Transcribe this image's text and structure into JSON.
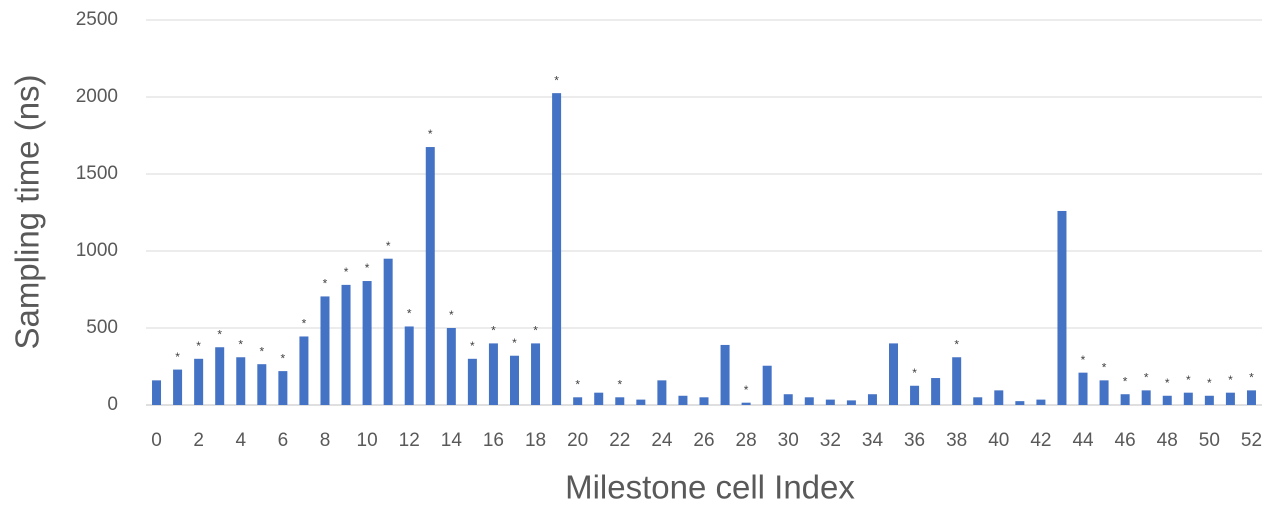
{
  "chart_data": {
    "type": "bar",
    "x_label": "Milestone cell Index",
    "y_label": "Sampling time (ns)",
    "categories": [
      "0",
      null,
      "2",
      null,
      "4",
      null,
      "6",
      null,
      "8",
      null,
      "10",
      null,
      "12",
      null,
      "14",
      null,
      "16",
      null,
      "18",
      null,
      "20",
      null,
      "22",
      null,
      "24",
      null,
      "26",
      null,
      "28",
      null,
      "30",
      null,
      "32",
      null,
      "34",
      null,
      "36",
      null,
      "38",
      null,
      "40",
      null,
      "42",
      null,
      "44",
      null,
      "46",
      null,
      "48",
      null,
      "50",
      null,
      "52"
    ],
    "values": [
      160,
      230,
      300,
      375,
      310,
      265,
      220,
      445,
      705,
      780,
      805,
      950,
      510,
      1675,
      500,
      300,
      400,
      320,
      400,
      2025,
      50,
      80,
      50,
      35,
      160,
      60,
      50,
      390,
      15,
      255,
      70,
      50,
      35,
      30,
      70,
      400,
      125,
      175,
      310,
      50,
      95,
      25,
      35,
      1260,
      210,
      160,
      70,
      95,
      60,
      80,
      60,
      80,
      95
    ],
    "annotations": [
      null,
      "*",
      "*",
      "*",
      "*",
      "*",
      "*",
      "*",
      "*",
      "*",
      "*",
      "*",
      "*",
      "*",
      "*",
      "*",
      "*",
      "*",
      "*",
      "*",
      "*",
      null,
      "*",
      null,
      null,
      null,
      null,
      null,
      "*",
      null,
      null,
      null,
      null,
      null,
      null,
      null,
      "*",
      null,
      "*",
      null,
      null,
      null,
      null,
      null,
      "*",
      "*",
      "*",
      "*",
      "*",
      "*",
      "*",
      "*",
      "*"
    ],
    "color": "#4472c4",
    "ylim": [
      0,
      2500
    ],
    "yticks": [
      0,
      500,
      1000,
      1500,
      2000,
      2500
    ],
    "grid": true
  }
}
